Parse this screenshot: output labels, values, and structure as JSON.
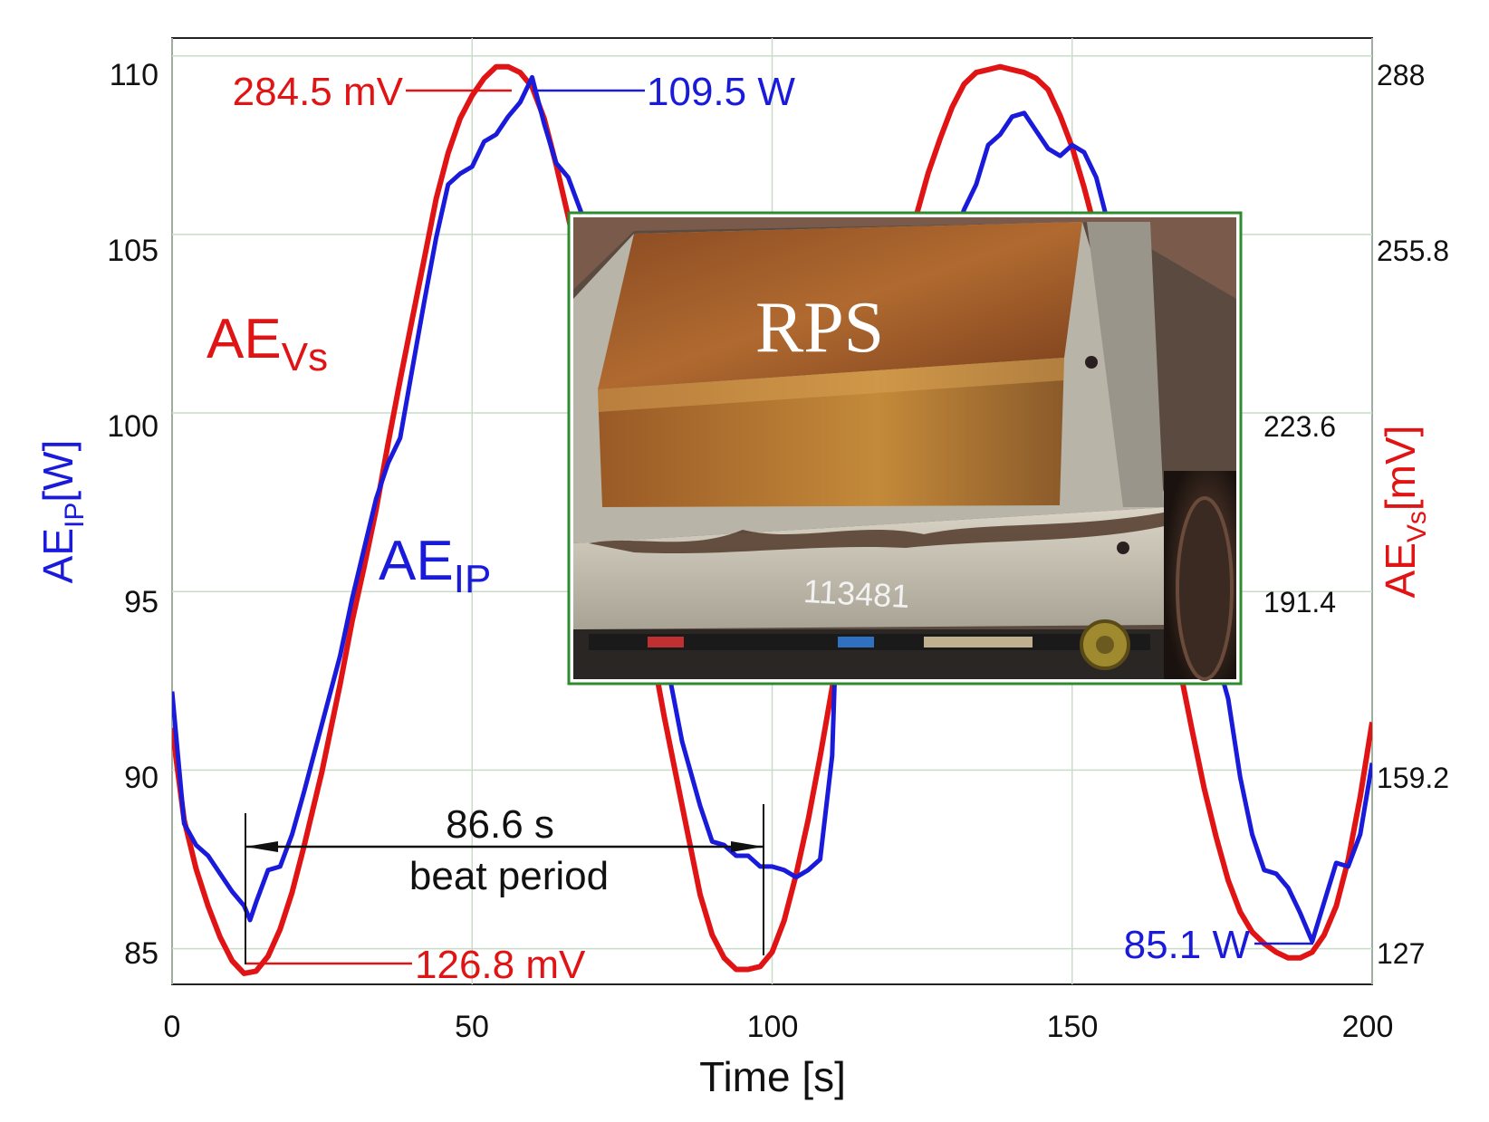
{
  "chart_data": {
    "type": "line",
    "xlabel": "Time [s]",
    "xlim": [
      0,
      200
    ],
    "x_ticks": [
      "0",
      "50",
      "100",
      "150",
      "200"
    ],
    "ylabel_left": {
      "main": "AE",
      "sub": "IP",
      "unit": "[W]"
    },
    "ylim_left": [
      84,
      110.5
    ],
    "y_ticks_left": [
      "85",
      "90",
      "95",
      "100",
      "105",
      "110"
    ],
    "ylabel_right": {
      "main": "AE",
      "sub": "Vs",
      "unit": "[mV]"
    },
    "ylim_right": [
      125.4,
      290
    ],
    "y_ticks_right": [
      "127",
      "159.2",
      "191.4",
      "223.6",
      "255.8",
      "288"
    ],
    "grid": true,
    "colors": {
      "AE_IP": "#1a1adb",
      "AE_Vs": "#e01414"
    },
    "series": [
      {
        "name_main": "AE",
        "name_sub": "IP",
        "axis": "left",
        "x": [
          0,
          2,
          4,
          6,
          8,
          10,
          12,
          13,
          14,
          16,
          18,
          20,
          22,
          25,
          28,
          30,
          32,
          34,
          36,
          38,
          40,
          42,
          44,
          46,
          48,
          50,
          52,
          54,
          56,
          58,
          60,
          62,
          64,
          66,
          68,
          70,
          72,
          75,
          78,
          80,
          82,
          85,
          88,
          90,
          92,
          94,
          96,
          98,
          100,
          102,
          104,
          106,
          108,
          110,
          111,
          112,
          114,
          116,
          118,
          120,
          122,
          124,
          126,
          128,
          130,
          132,
          134,
          136,
          138,
          140,
          142,
          144,
          146,
          148,
          150,
          152,
          154,
          156,
          158,
          160,
          162,
          164,
          166,
          168,
          170,
          172,
          174,
          176,
          178,
          180,
          182,
          184,
          186,
          188,
          190,
          192,
          194,
          196,
          198,
          200
        ],
        "y": [
          92.2,
          88.5,
          87.9,
          87.6,
          87.1,
          86.6,
          86.2,
          85.8,
          86.3,
          87.2,
          87.3,
          88.2,
          89.4,
          91.3,
          93.2,
          94.8,
          96.2,
          97.6,
          98.6,
          99.3,
          101.2,
          103.1,
          104.9,
          106.4,
          106.7,
          106.9,
          107.6,
          107.8,
          108.3,
          108.7,
          109.4,
          108.1,
          107.0,
          106.6,
          105.7,
          104.8,
          103.7,
          101.3,
          98.3,
          96.1,
          93.4,
          90.8,
          89.0,
          88.0,
          87.9,
          87.6,
          87.6,
          87.3,
          87.3,
          87.2,
          87.0,
          87.2,
          87.5,
          90.4,
          95.5,
          100.0,
          102.6,
          100.3,
          96.8,
          95.5,
          97.4,
          101.3,
          103.1,
          104.0,
          104.8,
          105.7,
          106.4,
          107.5,
          107.8,
          108.3,
          108.4,
          107.9,
          107.4,
          107.2,
          107.5,
          107.3,
          106.6,
          105.3,
          103.5,
          102.5,
          101.0,
          99.8,
          98.5,
          97.6,
          96.0,
          94.5,
          93.2,
          92.0,
          89.8,
          88.2,
          87.2,
          87.1,
          86.7,
          86.0,
          85.2,
          86.3,
          87.4,
          87.3,
          88.2,
          90.2
        ]
      },
      {
        "name_main": "AE",
        "name_sub": "Vs",
        "axis": "right",
        "x": [
          0,
          2,
          4,
          6,
          8,
          10,
          12,
          14,
          16,
          18,
          20,
          22,
          25,
          28,
          30,
          32,
          34,
          36,
          38,
          40,
          42,
          44,
          46,
          48,
          50,
          52,
          54,
          56,
          58,
          60,
          62,
          64,
          66,
          68,
          70,
          72,
          75,
          78,
          80,
          82,
          85,
          88,
          90,
          92,
          94,
          96,
          98,
          100,
          102,
          104,
          106,
          108,
          110,
          112,
          114,
          116,
          118,
          120,
          122,
          124,
          126,
          128,
          130,
          132,
          134,
          136,
          138,
          140,
          142,
          144,
          146,
          148,
          150,
          152,
          154,
          156,
          158,
          160,
          162,
          164,
          166,
          168,
          170,
          172,
          174,
          176,
          178,
          180,
          182,
          184,
          186,
          188,
          190,
          192,
          194,
          196,
          198,
          200
        ],
        "y": [
          170.0,
          154.0,
          145.5,
          139.0,
          133.6,
          129.5,
          127.3,
          127.7,
          130.3,
          135.0,
          141.4,
          149.5,
          162.5,
          177.6,
          188.6,
          198.0,
          208.0,
          219.5,
          230.5,
          241.0,
          251.5,
          262.0,
          270.0,
          276.0,
          280.0,
          283.0,
          285.0,
          285.0,
          284.0,
          281.5,
          276.0,
          268.0,
          259.0,
          249.5,
          239.0,
          228.0,
          211.5,
          194.5,
          183.5,
          172.0,
          156.5,
          141.0,
          134.0,
          130.0,
          128.0,
          128.0,
          128.5,
          131.0,
          136.5,
          144.5,
          154.0,
          165.0,
          177.0,
          189.0,
          201.5,
          213.5,
          226.0,
          238.0,
          249.5,
          259.0,
          266.5,
          272.5,
          278.0,
          282.0,
          284.0,
          284.5,
          285.0,
          284.5,
          284.0,
          283.0,
          281.0,
          276.5,
          271.0,
          264.0,
          256.0,
          247.0,
          236.5,
          226.0,
          214.5,
          203.0,
          191.5,
          180.0,
          169.5,
          159.5,
          151.0,
          143.5,
          138.0,
          134.5,
          132.5,
          131.0,
          130.0,
          130.0,
          131.0,
          134.0,
          139.0,
          147.0,
          158.0,
          171.0
        ]
      }
    ],
    "annotations": {
      "max_vs": "284.5 mV",
      "max_ip": "109.5 W",
      "min_vs": "126.8 mV",
      "min_ip": "85.1 W",
      "beat_value": "86.6 s",
      "beat_text": "beat period"
    },
    "inset_photo": {
      "label": "RPS",
      "plate_number": "113481"
    }
  }
}
